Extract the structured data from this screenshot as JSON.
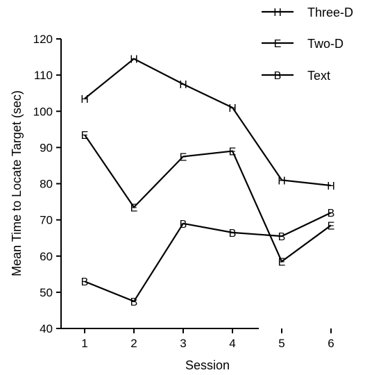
{
  "chart_data": {
    "type": "line",
    "xlabel": "Session",
    "ylabel": "Mean Time to Locate Target (sec)",
    "x": [
      1,
      2,
      3,
      4,
      5,
      6
    ],
    "xticks": [
      "1",
      "2",
      "3",
      "4",
      "5",
      "6"
    ],
    "ylim": [
      40,
      120
    ],
    "yticks": [
      "40",
      "50",
      "60",
      "70",
      "80",
      "90",
      "100",
      "110",
      "120"
    ],
    "grid": false,
    "legend_position": "top-right",
    "series": [
      {
        "name": "Three-D",
        "marker": "H",
        "values": [
          103.5,
          114.5,
          107.5,
          101,
          81,
          79.5
        ]
      },
      {
        "name": "Two-D",
        "marker": "E",
        "values": [
          93.5,
          73.5,
          87.5,
          89,
          58.5,
          68.5
        ]
      },
      {
        "name": "Text",
        "marker": "B",
        "values": [
          53,
          47.5,
          69,
          66.5,
          65.5,
          72
        ]
      }
    ]
  }
}
